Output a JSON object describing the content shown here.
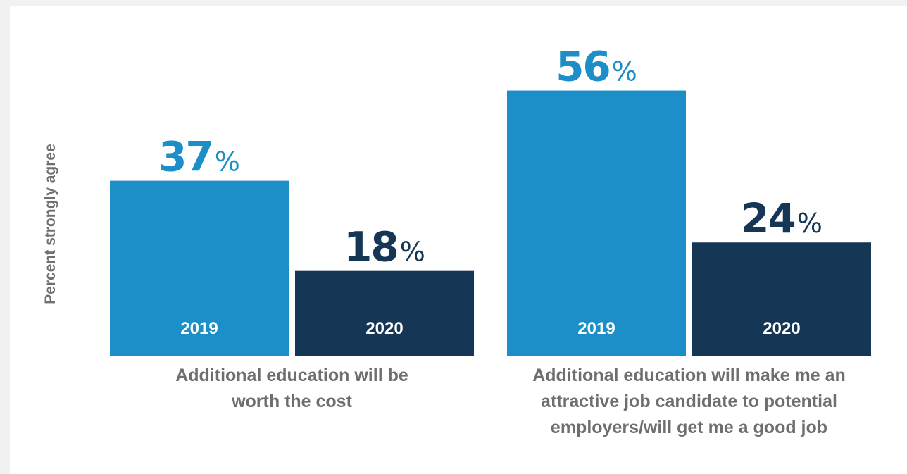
{
  "chart_data": {
    "type": "bar",
    "ylabel": "Percent strongly agree",
    "unit": "%",
    "ylim": [
      0,
      60
    ],
    "grid": false,
    "legend": "none",
    "groups": [
      {
        "label": "Additional education will be worth the cost",
        "label_lines": [
          "Additional education will be",
          "worth the cost"
        ],
        "bars": [
          {
            "category": "2019",
            "value": 37,
            "value_label": "37"
          },
          {
            "category": "2020",
            "value": 18,
            "value_label": "18"
          }
        ]
      },
      {
        "label": "Additional education will make me an attractive job candidate to potential employers/will get me a good job",
        "label_lines": [
          "Additional education will make me an",
          "attractive job candidate to potential",
          "employers/will get me a good job"
        ],
        "bars": [
          {
            "category": "2019",
            "value": 56,
            "value_label": "56"
          },
          {
            "category": "2020",
            "value": 24,
            "value_label": "24"
          }
        ]
      }
    ],
    "colors": {
      "2019": "#1c8fc8",
      "2020": "#153655",
      "value_label_2019": "#1c8fc8",
      "value_label_2020": "#153655"
    }
  }
}
